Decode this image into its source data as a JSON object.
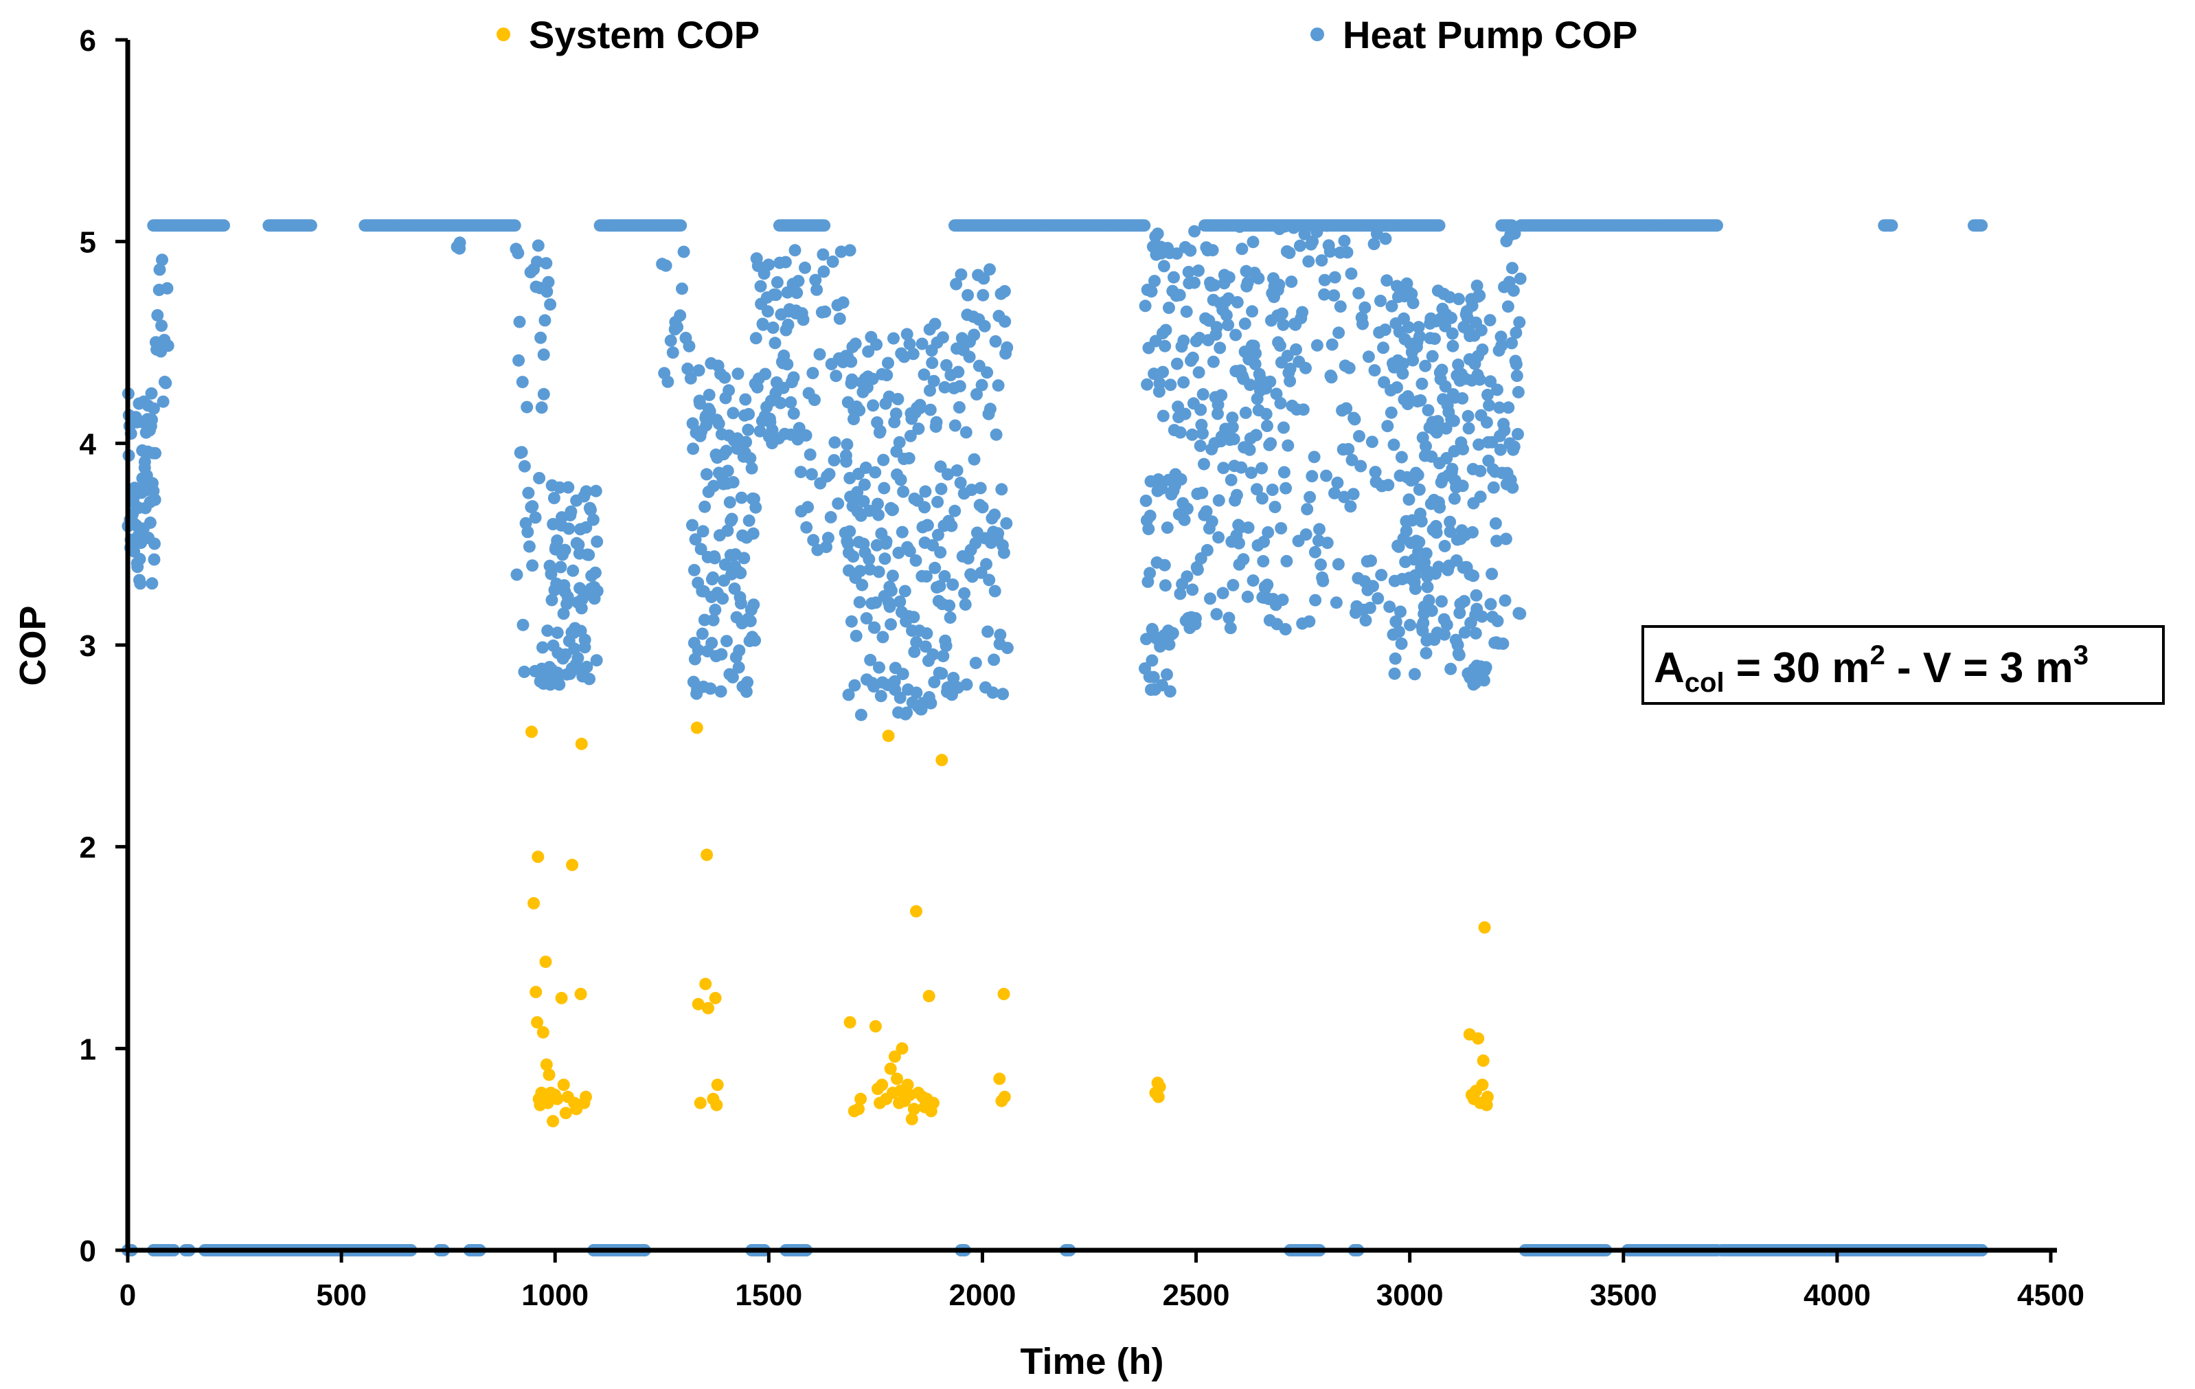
{
  "chart_data": {
    "type": "scatter",
    "title": "",
    "xlabel": "Time (h)",
    "ylabel": "COP",
    "xlim": [
      0,
      4500
    ],
    "ylim": [
      0,
      6
    ],
    "x_ticks": [
      "0",
      "500",
      "1000",
      "1500",
      "2000",
      "2500",
      "3000",
      "3500",
      "4000",
      "4500"
    ],
    "y_ticks": [
      "0",
      "1",
      "2",
      "3",
      "4",
      "5",
      "6"
    ],
    "grid": false,
    "legend_position": "top",
    "annotation": {
      "label": "A",
      "subscript": "col",
      "eq1": " = 30 m",
      "sup1": "2",
      "mid": " - V = 3 m",
      "sup2": "3"
    },
    "series": [
      {
        "name": "System COP",
        "color": "#ffc000",
        "points": [
          [
            945,
            2.57
          ],
          [
            950,
            1.72
          ],
          [
            955,
            1.28
          ],
          [
            958,
            1.13
          ],
          [
            960,
            1.95
          ],
          [
            962,
            0.75
          ],
          [
            965,
            0.72
          ],
          [
            968,
            0.78
          ],
          [
            972,
            1.08
          ],
          [
            975,
            0.76
          ],
          [
            978,
            1.43
          ],
          [
            980,
            0.92
          ],
          [
            983,
            0.73
          ],
          [
            986,
            0.87
          ],
          [
            990,
            0.78
          ],
          [
            995,
            0.64
          ],
          [
            1000,
            0.77
          ],
          [
            1005,
            0.75
          ],
          [
            1015,
            1.25
          ],
          [
            1020,
            0.82
          ],
          [
            1025,
            0.68
          ],
          [
            1030,
            0.76
          ],
          [
            1040,
            1.91
          ],
          [
            1045,
            0.73
          ],
          [
            1050,
            0.7
          ],
          [
            1060,
            1.27
          ],
          [
            1062,
            2.51
          ],
          [
            1068,
            0.73
          ],
          [
            1072,
            0.76
          ],
          [
            1332,
            2.59
          ],
          [
            1335,
            1.22
          ],
          [
            1340,
            0.73
          ],
          [
            1352,
            1.32
          ],
          [
            1355,
            1.96
          ],
          [
            1358,
            1.2
          ],
          [
            1370,
            0.75
          ],
          [
            1375,
            1.25
          ],
          [
            1378,
            0.72
          ],
          [
            1380,
            0.82
          ],
          [
            1690,
            1.13
          ],
          [
            1700,
            0.69
          ],
          [
            1710,
            0.7
          ],
          [
            1715,
            0.75
          ],
          [
            1750,
            1.11
          ],
          [
            1755,
            0.8
          ],
          [
            1760,
            0.73
          ],
          [
            1765,
            0.82
          ],
          [
            1775,
            0.75
          ],
          [
            1780,
            2.55
          ],
          [
            1785,
            0.9
          ],
          [
            1790,
            0.78
          ],
          [
            1795,
            0.96
          ],
          [
            1800,
            0.85
          ],
          [
            1805,
            0.73
          ],
          [
            1808,
            0.79
          ],
          [
            1812,
            1.0
          ],
          [
            1818,
            0.74
          ],
          [
            1825,
            0.82
          ],
          [
            1830,
            0.77
          ],
          [
            1835,
            0.65
          ],
          [
            1840,
            0.7
          ],
          [
            1845,
            1.68
          ],
          [
            1850,
            0.78
          ],
          [
            1860,
            0.76
          ],
          [
            1865,
            0.71
          ],
          [
            1870,
            0.75
          ],
          [
            1875,
            1.26
          ],
          [
            1880,
            0.69
          ],
          [
            1885,
            0.73
          ],
          [
            1905,
            2.43
          ],
          [
            2040,
            0.85
          ],
          [
            2045,
            0.74
          ],
          [
            2050,
            1.27
          ],
          [
            2052,
            0.76
          ],
          [
            2405,
            0.78
          ],
          [
            2410,
            0.83
          ],
          [
            2412,
            0.76
          ],
          [
            2415,
            0.81
          ],
          [
            3140,
            1.07
          ],
          [
            3145,
            0.77
          ],
          [
            3150,
            0.75
          ],
          [
            3155,
            0.79
          ],
          [
            3160,
            1.05
          ],
          [
            3165,
            0.73
          ],
          [
            3170,
            0.82
          ],
          [
            3172,
            0.94
          ],
          [
            3175,
            1.6
          ],
          [
            3180,
            0.72
          ],
          [
            3182,
            0.76
          ]
        ]
      },
      {
        "name": "Heat Pump COP",
        "color": "#5b9bd5",
        "zero_ranges": [
          [
            0,
            10
          ],
          [
            60,
            110
          ],
          [
            135,
            145
          ],
          [
            180,
            665
          ],
          [
            730,
            740
          ],
          [
            800,
            825
          ],
          [
            1090,
            1210
          ],
          [
            1460,
            1490
          ],
          [
            1540,
            1590
          ],
          [
            1950,
            1960
          ],
          [
            2195,
            2205
          ],
          [
            2720,
            2790
          ],
          [
            2870,
            2880
          ],
          [
            3270,
            3460
          ],
          [
            3510,
            3720
          ],
          [
            3730,
            4340
          ]
        ],
        "plateau_ranges": [
          [
            60,
            225
          ],
          [
            330,
            430
          ],
          [
            555,
            908
          ],
          [
            1105,
            1295
          ],
          [
            1525,
            1630
          ],
          [
            1935,
            2380
          ],
          [
            2520,
            3070
          ],
          [
            3215,
            3240
          ],
          [
            3260,
            3720
          ],
          [
            4110,
            4130
          ],
          [
            4320,
            4340
          ]
        ],
        "plateau_value": 5.08,
        "segments": [
          {
            "x0": 0,
            "x1": 65,
            "vmin": 3.3,
            "vmax": 4.25,
            "n": 70
          },
          {
            "x0": 65,
            "x1": 95,
            "vmin": 4.2,
            "vmax": 5.0,
            "n": 14
          },
          {
            "x0": 770,
            "x1": 780,
            "vmin": 4.95,
            "vmax": 5.0,
            "n": 3
          },
          {
            "x0": 908,
            "x1": 990,
            "vmin": 2.8,
            "vmax": 5.0,
            "n": 40
          },
          {
            "x0": 960,
            "x1": 1010,
            "vmin": 2.8,
            "vmax": 2.9,
            "n": 16
          },
          {
            "x0": 990,
            "x1": 1100,
            "vmin": 2.8,
            "vmax": 3.8,
            "n": 80
          },
          {
            "x0": 1250,
            "x1": 1320,
            "vmin": 4.3,
            "vmax": 5.0,
            "n": 16
          },
          {
            "x0": 1320,
            "x1": 1470,
            "vmin": 2.75,
            "vmax": 4.4,
            "n": 130
          },
          {
            "x0": 1470,
            "x1": 1570,
            "vmin": 4.0,
            "vmax": 5.0,
            "n": 60
          },
          {
            "x0": 1570,
            "x1": 1700,
            "vmin": 3.4,
            "vmax": 5.0,
            "n": 50
          },
          {
            "x0": 1680,
            "x1": 1920,
            "vmin": 2.65,
            "vmax": 4.6,
            "n": 200
          },
          {
            "x0": 1920,
            "x1": 2060,
            "vmin": 2.75,
            "vmax": 5.05,
            "n": 90
          },
          {
            "x0": 2380,
            "x1": 2440,
            "vmin": 2.75,
            "vmax": 5.05,
            "n": 60
          },
          {
            "x0": 2440,
            "x1": 2720,
            "vmin": 3.05,
            "vmax": 5.08,
            "n": 220
          },
          {
            "x0": 2720,
            "x1": 2960,
            "vmin": 3.1,
            "vmax": 5.08,
            "n": 110
          },
          {
            "x0": 2960,
            "x1": 3170,
            "vmin": 2.85,
            "vmax": 4.8,
            "n": 230
          },
          {
            "x0": 3140,
            "x1": 3180,
            "vmin": 2.8,
            "vmax": 2.9,
            "n": 16
          },
          {
            "x0": 3180,
            "x1": 3260,
            "vmin": 3.0,
            "vmax": 5.05,
            "n": 60
          }
        ]
      }
    ]
  }
}
